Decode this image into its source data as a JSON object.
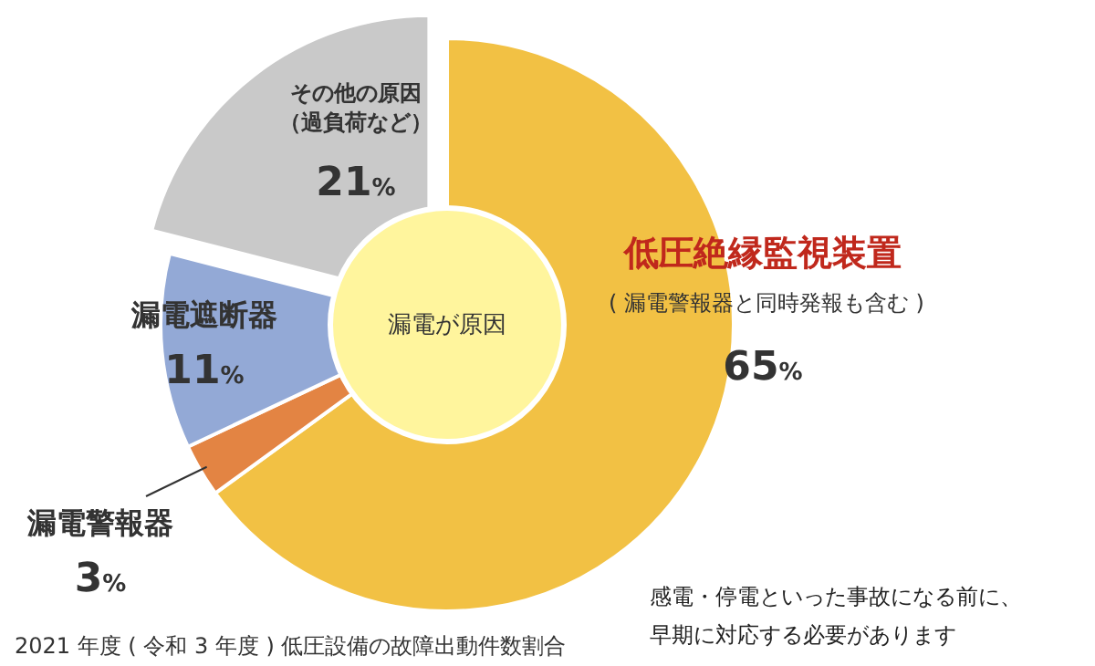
{
  "chart_data": {
    "type": "donut",
    "categories": [
      "低圧絶縁監視装置",
      "漏電警報器",
      "漏電遮断器",
      "その他の原因（過負荷など）"
    ],
    "values": [
      65,
      3,
      11,
      21
    ],
    "colors": [
      "#f2c144",
      "#e38443",
      "#93a9d6",
      "#c9c9c9"
    ],
    "value_labels": [
      "65%",
      "3%",
      "11%",
      "21%"
    ],
    "annotations": [
      {
        "text": "( 漏電警報器と同時発報も含む )",
        "x": "低圧絶縁監視装置"
      },
      "漏電が原因",
      "2021 年度 ( 令和 3 年度 ) 低圧設備の故障出動件数割合",
      "感電・停電といった事故になる前に、早期に対応する必要があります"
    ]
  }
}
